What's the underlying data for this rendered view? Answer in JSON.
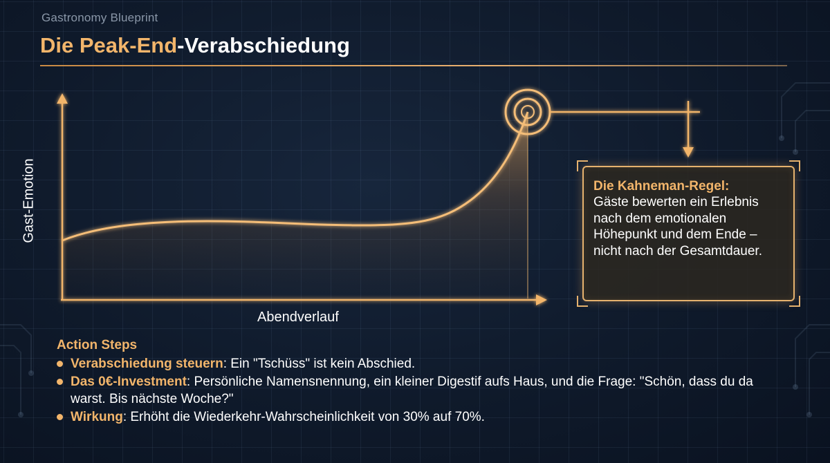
{
  "brand": "Gastronomy Blueprint",
  "title": {
    "accent": "Die Peak-End",
    "rest": "-Verabschiedung"
  },
  "diagram": {
    "y_axis_label": "Gast-Emotion",
    "x_axis_label": "Abendverlauf",
    "curve_color": "#f2b56b"
  },
  "callout": {
    "title": "Die Kahneman-Regel:",
    "body": "Gäste bewerten ein Erlebnis nach dem emotionalen Höhepunkt und dem Ende – nicht nach der Gesamtdauer."
  },
  "steps": {
    "heading": "Action Steps",
    "items": [
      {
        "lead": "Verabschiedung steuern",
        "text": ": Ein \"Tschüss\" ist kein Abschied."
      },
      {
        "lead": "Das 0€-Investment",
        "text": ": Persönliche Namensnennung, ein kleiner Digestif aufs Haus, und die Frage: \"Schön, dass du da warst. Bis nächste Woche?\""
      },
      {
        "lead": "Wirkung",
        "text": ": Erhöht die Wiederkehr-Wahrscheinlichkeit von 30% auf 70%."
      }
    ]
  },
  "colors": {
    "accent": "#f2b56b",
    "background": "#0f1a2b"
  }
}
